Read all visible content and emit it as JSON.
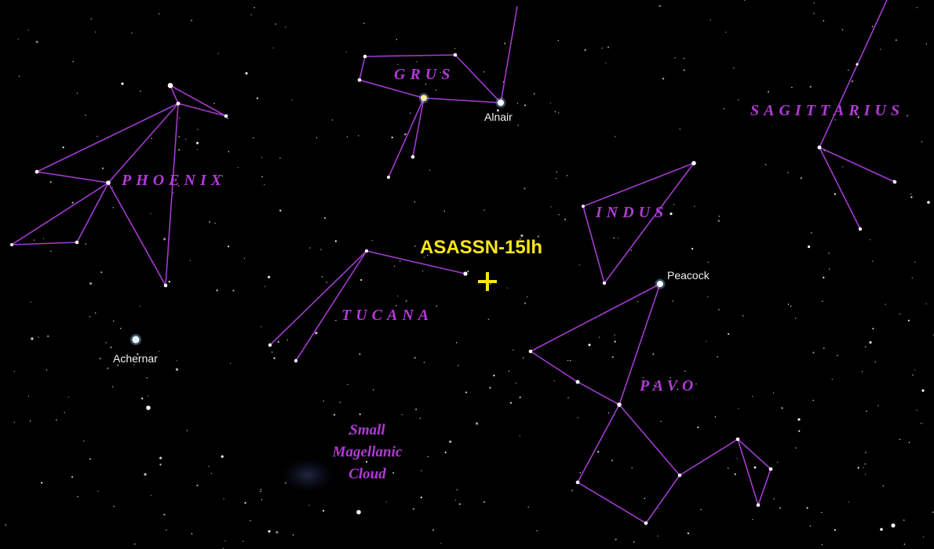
{
  "colors": {
    "background": "#000000",
    "constellation_line": "#a33bd0",
    "constellation_label": "#b23ad6",
    "star": "#ffffff",
    "star_label": "#f2f2f2",
    "target": "#ffe51a"
  },
  "target": {
    "name": "ASASSN-15lh",
    "marker": "plus"
  },
  "constellations": {
    "grus": "GRUS",
    "phoenix": "PHOENIX",
    "sagittarius": "SAGITTARIUS",
    "indus": "INDUS",
    "tucana": "TUCANA",
    "pavo": "PAVO"
  },
  "stars": {
    "alnair": "Alnair",
    "peacock": "Peacock",
    "achernar": "Achernar"
  },
  "deep_sky": {
    "smc_line1": "Small",
    "smc_line2": "Magellanic",
    "smc_line3": "Cloud"
  }
}
